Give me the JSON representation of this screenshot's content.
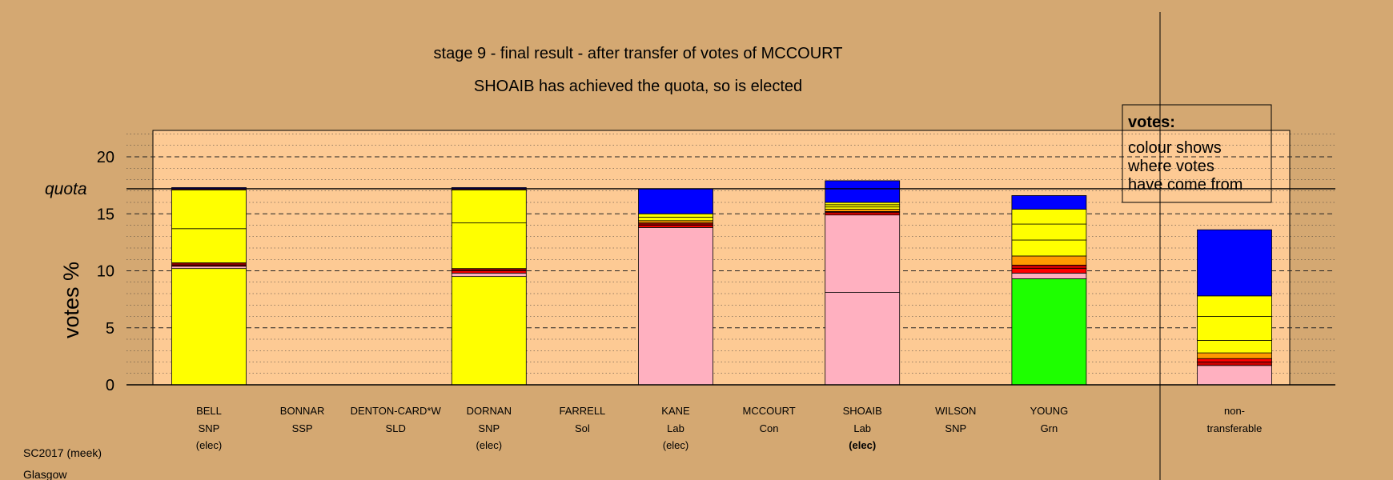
{
  "title": "stage 9 - final result - after transfer of votes of MCCOURT",
  "subtitle": "SHOAIB has achieved the quota, so is elected",
  "footer": {
    "line1": "SC2017 (meek)",
    "line2": "Glasgow"
  },
  "legend": {
    "heading": "votes:",
    "lines": [
      "colour shows",
      "where votes",
      "have come from"
    ]
  },
  "colors": {
    "background": "#d4a872",
    "plot_band": "#fdca94",
    "SNP": "#ffff00",
    "Lab": "#ffb0c0",
    "Grn": "#1eff00",
    "Sol": "#cc0000",
    "SSP": "#ff0000",
    "SLD": "#ff9900",
    "Con": "#0000ff",
    "Ind": "#8b0000"
  },
  "chart_data": {
    "type": "bar",
    "stacked": true,
    "ylabel": "votes %",
    "ylim": [
      0,
      22
    ],
    "yticks": [
      0,
      5,
      10,
      15,
      20
    ],
    "quota": 17.2,
    "quota_label": "quota",
    "grid": "dashed",
    "legend_position": "top-right",
    "candidates": [
      {
        "name": "BELL",
        "party": "SNP",
        "status": "(elec)",
        "status_bold": false,
        "segments": [
          {
            "from": "SNP",
            "value": 10.2
          },
          {
            "from": "Lab",
            "value": 0.2
          },
          {
            "from": "SSP",
            "value": 0.1
          },
          {
            "from": "Ind",
            "value": 0.2
          },
          {
            "from": "SNP",
            "value": 3.0
          },
          {
            "from": "SNP",
            "value": 3.4
          },
          {
            "from": "Ind",
            "value": 0.1
          },
          {
            "from": "Con",
            "value": 0.1
          }
        ]
      },
      {
        "name": "BONNAR",
        "party": "SSP",
        "status": "",
        "status_bold": false,
        "segments": []
      },
      {
        "name": "DENTON-CARD*W",
        "party": "SLD",
        "status": "",
        "status_bold": false,
        "segments": []
      },
      {
        "name": "DORNAN",
        "party": "SNP",
        "status": "(elec)",
        "status_bold": false,
        "segments": [
          {
            "from": "SNP",
            "value": 9.5
          },
          {
            "from": "Lab",
            "value": 0.3
          },
          {
            "from": "SSP",
            "value": 0.2
          },
          {
            "from": "Ind",
            "value": 0.2
          },
          {
            "from": "SNP",
            "value": 4.0
          },
          {
            "from": "SNP",
            "value": 2.9
          },
          {
            "from": "Ind",
            "value": 0.1
          },
          {
            "from": "Con",
            "value": 0.1
          }
        ]
      },
      {
        "name": "FARRELL",
        "party": "Sol",
        "status": "",
        "status_bold": false,
        "segments": []
      },
      {
        "name": "KANE",
        "party": "Lab",
        "status": "(elec)",
        "status_bold": false,
        "segments": [
          {
            "from": "Lab",
            "value": 13.8
          },
          {
            "from": "SSP",
            "value": 0.2
          },
          {
            "from": "Ind",
            "value": 0.2
          },
          {
            "from": "SLD",
            "value": 0.2
          },
          {
            "from": "SNP",
            "value": 0.3
          },
          {
            "from": "SNP",
            "value": 0.3
          },
          {
            "from": "Con",
            "value": 2.2
          }
        ]
      },
      {
        "name": "MCCOURT",
        "party": "Con",
        "status": "",
        "status_bold": false,
        "segments": []
      },
      {
        "name": "SHOAIB",
        "party": "Lab",
        "status": "(elec)",
        "status_bold": true,
        "segments": [
          {
            "from": "Lab",
            "value": 8.1
          },
          {
            "from": "Lab",
            "value": 6.8
          },
          {
            "from": "SSP",
            "value": 0.2
          },
          {
            "from": "Ind",
            "value": 0.1
          },
          {
            "from": "SLD",
            "value": 0.2
          },
          {
            "from": "SNP",
            "value": 0.2
          },
          {
            "from": "SNP",
            "value": 0.2
          },
          {
            "from": "SNP",
            "value": 0.2
          },
          {
            "from": "Con",
            "value": 1.9
          }
        ]
      },
      {
        "name": "WILSON",
        "party": "SNP",
        "status": "",
        "status_bold": false,
        "segments": []
      },
      {
        "name": "YOUNG",
        "party": "Grn",
        "status": "",
        "status_bold": false,
        "segments": [
          {
            "from": "Grn",
            "value": 9.3
          },
          {
            "from": "Lab",
            "value": 0.5
          },
          {
            "from": "SSP",
            "value": 0.4
          },
          {
            "from": "Sol",
            "value": 0.3
          },
          {
            "from": "SLD",
            "value": 0.8
          },
          {
            "from": "SNP",
            "value": 1.4
          },
          {
            "from": "SNP",
            "value": 1.4
          },
          {
            "from": "SNP",
            "value": 1.3
          },
          {
            "from": "Con",
            "value": 1.2
          }
        ]
      }
    ],
    "nontransferable": {
      "label_line1": "non-",
      "label_line2": "transferable",
      "segments": [
        {
          "from": "Lab",
          "value": 1.7
        },
        {
          "from": "Sol",
          "value": 0.3
        },
        {
          "from": "SSP",
          "value": 0.3
        },
        {
          "from": "SLD",
          "value": 0.5
        },
        {
          "from": "SNP",
          "value": 1.1
        },
        {
          "from": "SNP",
          "value": 2.1
        },
        {
          "from": "SNP",
          "value": 1.8
        },
        {
          "from": "Con",
          "value": 5.8
        }
      ]
    }
  }
}
